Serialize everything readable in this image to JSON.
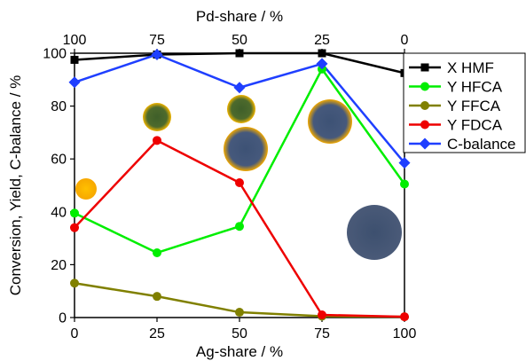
{
  "chart_data": {
    "type": "line",
    "xlabel": "Ag-share / %",
    "x2label": "Pd-share / %",
    "ylabel": "Conversion, Yield, C-balance / %",
    "xlim": [
      0,
      100
    ],
    "ylim": [
      0,
      100
    ],
    "x": [
      0,
      25,
      50,
      75,
      100
    ],
    "x_ticks": [
      "0",
      "25",
      "50",
      "75",
      "100"
    ],
    "x2_ticks": [
      "100",
      "75",
      "50",
      "25",
      "0"
    ],
    "y_ticks": [
      "0",
      "20",
      "40",
      "60",
      "80",
      "100"
    ],
    "grid": false,
    "legend_position": "right",
    "series": [
      {
        "name": "X HMF",
        "color": "#000000",
        "marker": "square",
        "values": [
          97.5,
          99.5,
          100,
          100,
          92.5
        ]
      },
      {
        "name": "Y HFCA",
        "color": "#00ee00",
        "marker": "circle",
        "values": [
          39.5,
          24.5,
          34.5,
          94,
          50.5
        ]
      },
      {
        "name": "Y FFCA",
        "color": "#808000",
        "marker": "circle",
        "values": [
          13,
          8,
          2,
          0.5,
          0.3
        ]
      },
      {
        "name": "Y FDCA",
        "color": "#ee0000",
        "marker": "circle",
        "values": [
          34,
          67,
          51,
          1,
          0.3
        ]
      },
      {
        "name": "C-balance",
        "color": "#1f3fff",
        "marker": "diamond",
        "values": [
          89,
          99.5,
          87,
          96,
          58.5
        ]
      }
    ]
  }
}
